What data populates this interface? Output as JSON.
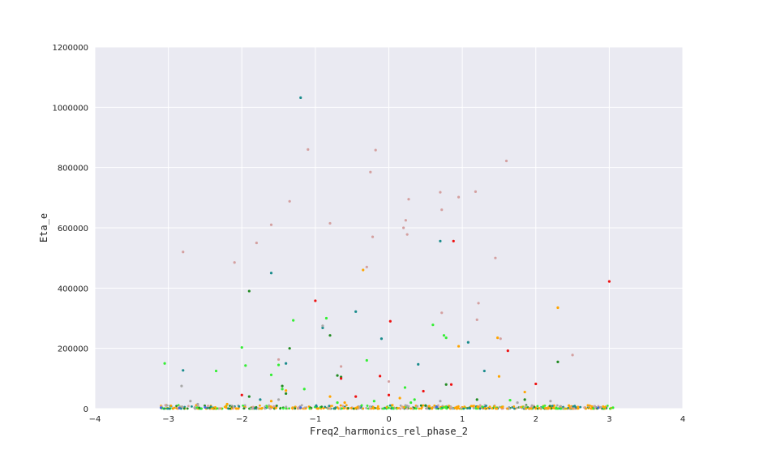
{
  "chart_data": {
    "type": "scatter",
    "xlabel": "Freq2_harmonics_rel_phase_2",
    "ylabel": "Eta_e",
    "xlim": [
      -4,
      4
    ],
    "ylim": [
      0,
      1200000
    ],
    "x_ticks": [
      -4,
      -3,
      -2,
      -1,
      0,
      1,
      2,
      3,
      4
    ],
    "y_ticks": [
      0,
      200000,
      400000,
      600000,
      800000,
      1000000,
      1200000
    ],
    "x_tick_labels": [
      "−4",
      "−3",
      "−2",
      "−1",
      "0",
      "1",
      "2",
      "3",
      "4"
    ],
    "y_tick_labels": [
      "0",
      "200000",
      "400000",
      "600000",
      "800000",
      "1000000",
      "1200000"
    ],
    "grid": true,
    "legend": "none",
    "background": "#eaeaf2",
    "grid_color": "#ffffff",
    "series": [
      {
        "color": "#d4a0a0",
        "x": [
          -2.8,
          -2.1,
          -1.8,
          -1.6,
          -1.35,
          -1.1,
          -0.8,
          -0.25,
          -0.18,
          -0.22,
          0.2,
          0.23,
          0.25,
          0.27,
          0.7,
          0.72,
          0.95,
          1.18,
          1.6,
          1.45,
          1.22,
          1.2,
          0.72,
          1.52,
          2.5,
          -1.5,
          -0.65,
          0.0,
          -0.3
        ],
        "y": [
          520000,
          485000,
          550000,
          610000,
          688000,
          860000,
          615000,
          785000,
          858000,
          570000,
          600000,
          625000,
          578000,
          695000,
          718000,
          660000,
          702000,
          720000,
          822000,
          500000,
          350000,
          295000,
          318000,
          232000,
          178000,
          163000,
          140000,
          90000,
          470000
        ]
      },
      {
        "color": "#1a8c8c",
        "x": [
          -1.2,
          -1.6,
          -1.4,
          -0.9,
          0.7,
          -0.45,
          -0.1,
          1.3,
          -2.8,
          0.4,
          1.08,
          -1.75
        ],
        "y": [
          1032000,
          450000,
          150000,
          268000,
          556000,
          322000,
          232000,
          125000,
          127000,
          147000,
          220000,
          30000
        ]
      },
      {
        "color": "#228b22",
        "x": [
          -1.9,
          -1.35,
          -0.8,
          0.78,
          -1.45,
          -0.65,
          -0.7,
          2.3,
          -1.9,
          1.2,
          -1.4,
          0.5,
          1.85
        ],
        "y": [
          390000,
          200000,
          243000,
          80000,
          75000,
          105000,
          110000,
          155000,
          40000,
          30000,
          50000,
          10000,
          30000
        ]
      },
      {
        "color": "#33ee33",
        "x": [
          -3.05,
          -2.35,
          -2.0,
          -1.95,
          -1.6,
          -1.5,
          -1.3,
          -1.15,
          -0.85,
          -0.3,
          0.6,
          0.75,
          0.78,
          0.35,
          0.22,
          -0.2,
          -1.45,
          1.65,
          0.3,
          -0.7,
          2.1,
          3.05
        ],
        "y": [
          150000,
          125000,
          203000,
          143000,
          112000,
          145000,
          293000,
          65000,
          300000,
          160000,
          278000,
          243000,
          235000,
          30000,
          70000,
          25000,
          65000,
          28000,
          20000,
          20000,
          6000,
          3000
        ]
      },
      {
        "color": "#ee1111",
        "x": [
          -1.0,
          3.0,
          0.88,
          1.62,
          -0.12,
          0.0,
          0.47,
          2.0,
          0.85,
          -0.45,
          -2.0,
          -0.65,
          0.02
        ],
        "y": [
          358000,
          422000,
          556000,
          192000,
          108000,
          45000,
          58000,
          82000,
          80000,
          40000,
          45000,
          100000,
          290000
        ]
      },
      {
        "color": "#ffa500",
        "x": [
          -0.35,
          2.3,
          1.48,
          0.95,
          -0.8,
          1.85,
          -1.4,
          1.5,
          -1.6,
          -0.6,
          0.15,
          -2.2,
          2.45,
          0.55
        ],
        "y": [
          460000,
          335000,
          235000,
          207000,
          40000,
          55000,
          60000,
          107000,
          25000,
          20000,
          35000,
          15000,
          10000,
          8000
        ]
      },
      {
        "color": "#a8a8a8",
        "x": [
          -2.82,
          -2.7,
          -1.5,
          0.7,
          -0.9,
          -2.6,
          1.75,
          2.2
        ],
        "y": [
          75000,
          25000,
          30000,
          25000,
          275000,
          15000,
          20000,
          25000
        ]
      },
      {
        "color": "#4169e1",
        "x": [
          -3.1,
          -2.85,
          -2.5,
          2.85,
          0.65,
          -1.2
        ],
        "y": [
          3000,
          2000,
          4000,
          3000,
          5000,
          3000
        ]
      }
    ]
  }
}
